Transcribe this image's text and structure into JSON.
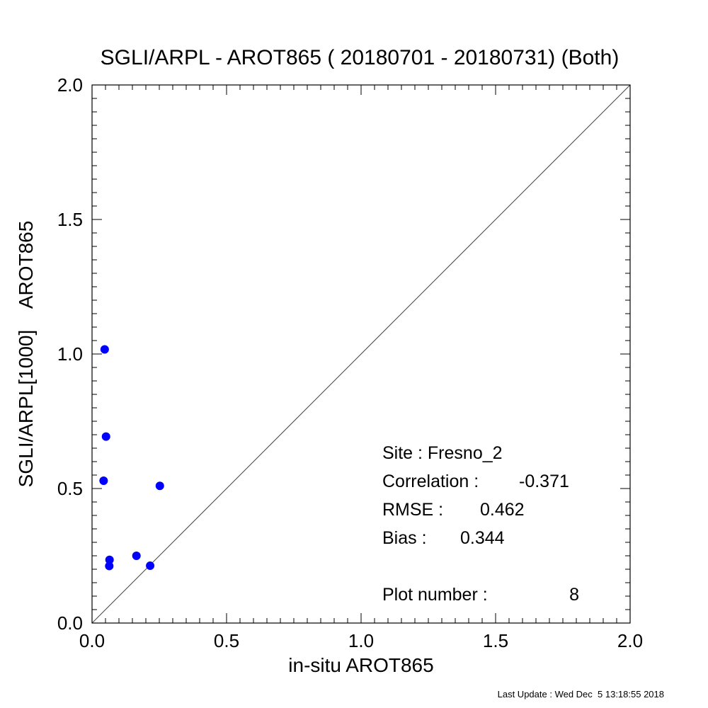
{
  "chart_data": {
    "type": "scatter",
    "title": "SGLI/ARPL - AROT865 ( 20180701 - 20180731) (Both)",
    "xlabel": "in-situ AROT865",
    "ylabel": "SGLI/ARPL[1000]    AROT865",
    "xlim": [
      0.0,
      2.0
    ],
    "ylim": [
      0.0,
      2.0
    ],
    "xticks": [
      "0.0",
      "0.5",
      "1.0",
      "1.5",
      "2.0"
    ],
    "yticks": [
      "0.0",
      "0.5",
      "1.0",
      "1.5",
      "2.0"
    ],
    "grid": false,
    "reference_line": "y = x",
    "point_color": "#0000ff",
    "points": [
      {
        "x": 0.047,
        "y": 1.017
      },
      {
        "x": 0.052,
        "y": 0.693
      },
      {
        "x": 0.043,
        "y": 0.529
      },
      {
        "x": 0.252,
        "y": 0.51
      },
      {
        "x": 0.065,
        "y": 0.235
      },
      {
        "x": 0.165,
        "y": 0.25
      },
      {
        "x": 0.064,
        "y": 0.212
      },
      {
        "x": 0.216,
        "y": 0.213
      }
    ],
    "annotations": {
      "site": "Site : Fresno_2",
      "correlation_label": "Correlation :",
      "correlation_value": "-0.371",
      "rmse_label": "RMSE :",
      "rmse_value": "0.462",
      "bias_label": "Bias :",
      "bias_value": "0.344",
      "plot_number_label": "Plot number :",
      "plot_number_value": "8"
    }
  },
  "footer": "Last Update : Wed Dec  5 13:18:55 2018"
}
